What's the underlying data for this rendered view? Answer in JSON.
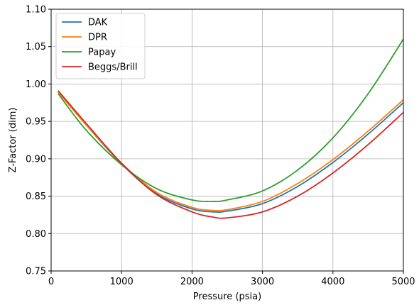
{
  "chart_data": {
    "type": "line",
    "xlabel": "Pressure (psia)",
    "ylabel": "Z-Factor (dim)",
    "xlim": [
      0,
      5000
    ],
    "ylim": [
      0.75,
      1.1
    ],
    "x_ticks": [
      0,
      1000,
      2000,
      3000,
      4000,
      5000
    ],
    "x_tick_labels": [
      "0",
      "1000",
      "2000",
      "3000",
      "4000",
      "5000"
    ],
    "y_ticks": [
      0.75,
      0.8,
      0.85,
      0.9,
      0.95,
      1.0,
      1.05,
      1.1
    ],
    "y_tick_labels": [
      "0.75",
      "0.80",
      "0.85",
      "0.90",
      "0.95",
      "1.00",
      "1.05",
      "1.10"
    ],
    "grid": true,
    "legend_position": "upper-left",
    "x": [
      100,
      500,
      1000,
      1500,
      2000,
      2300,
      2500,
      3000,
      3500,
      4000,
      4500,
      5000
    ],
    "series": [
      {
        "name": "DAK",
        "color": "#1f77b4",
        "values": [
          0.99,
          0.945,
          0.893,
          0.853,
          0.833,
          0.829,
          0.83,
          0.84,
          0.863,
          0.895,
          0.933,
          0.975
        ]
      },
      {
        "name": "DPR",
        "color": "#ff7f0e",
        "values": [
          0.989,
          0.945,
          0.894,
          0.855,
          0.835,
          0.831,
          0.832,
          0.843,
          0.867,
          0.899,
          0.937,
          0.979
        ]
      },
      {
        "name": "Papay",
        "color": "#2ca02c",
        "values": [
          0.987,
          0.938,
          0.892,
          0.86,
          0.845,
          0.843,
          0.845,
          0.857,
          0.885,
          0.928,
          0.987,
          1.06
        ]
      },
      {
        "name": "Beggs/Brill",
        "color": "#d62728",
        "values": [
          0.991,
          0.947,
          0.894,
          0.852,
          0.829,
          0.822,
          0.821,
          0.829,
          0.85,
          0.881,
          0.919,
          0.962
        ]
      }
    ]
  }
}
